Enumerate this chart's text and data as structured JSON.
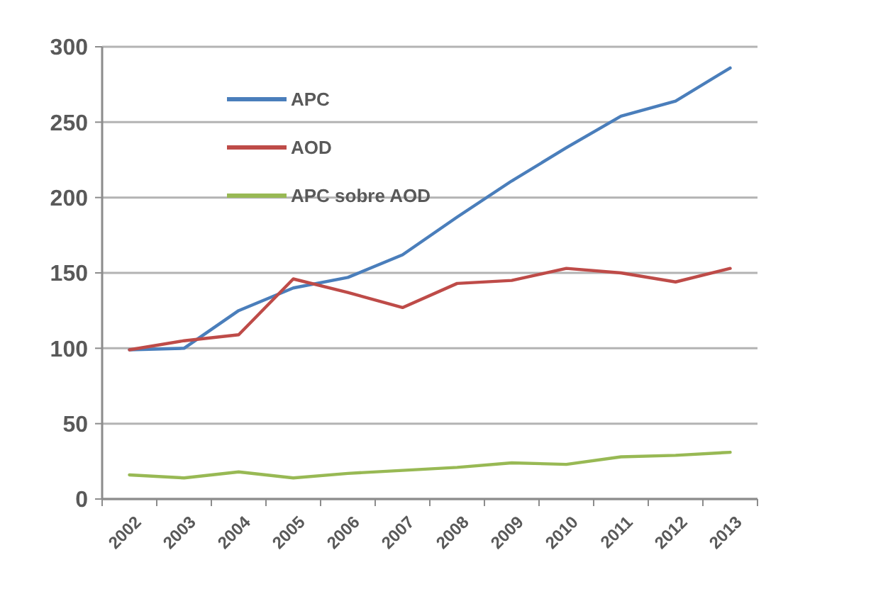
{
  "chart_data": {
    "type": "line",
    "categories": [
      "2002",
      "2003",
      "2004",
      "2005",
      "2006",
      "2007",
      "2008",
      "2009",
      "2010",
      "2011",
      "2012",
      "2013"
    ],
    "series": [
      {
        "name": "APC",
        "color": "#4a7ebb",
        "values": [
          99,
          100,
          125,
          140,
          147,
          162,
          187,
          211,
          233,
          254,
          264,
          286
        ]
      },
      {
        "name": "AOD",
        "color": "#be4b48",
        "values": [
          99,
          105,
          109,
          146,
          137,
          127,
          143,
          145,
          153,
          150,
          144,
          153
        ]
      },
      {
        "name": "APC sobre AOD",
        "color": "#98b954",
        "values": [
          16,
          14,
          18,
          14,
          17,
          19,
          21,
          24,
          23,
          28,
          29,
          31
        ]
      }
    ],
    "ylim": [
      0,
      300
    ],
    "yticks": [
      0,
      50,
      100,
      150,
      200,
      250,
      300
    ],
    "grid": "y",
    "legend": "top left",
    "marker": "none",
    "line_style": "solid"
  }
}
